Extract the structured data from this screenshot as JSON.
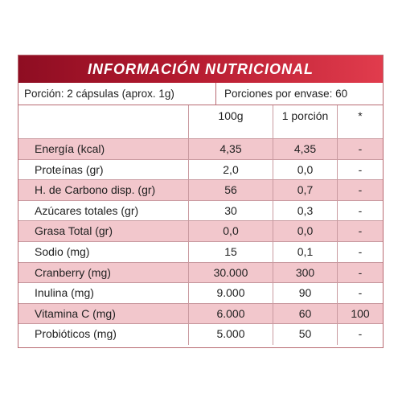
{
  "title": "INFORMACIÓN NUTRICIONAL",
  "portion": "Porción: 2 cápsulas (aprox. 1g)",
  "servings": "Porciones por envase: 60",
  "headers": [
    "",
    "100g",
    "1 porción",
    "*"
  ],
  "rows": [
    [
      "Energía (kcal)",
      "4,35",
      "4,35",
      "-"
    ],
    [
      "Proteínas (gr)",
      "2,0",
      "0,0",
      "-"
    ],
    [
      "H. de Carbono disp. (gr)",
      "56",
      "0,7",
      "-"
    ],
    [
      "Azúcares totales (gr)",
      "30",
      "0,3",
      "-"
    ],
    [
      "Grasa Total (gr)",
      "0,0",
      "0,0",
      "-"
    ],
    [
      "Sodio (mg)",
      "15",
      "0,1",
      "-"
    ],
    [
      "Cranberry (mg)",
      "30.000",
      "300",
      "-"
    ],
    [
      "Inulina (mg)",
      "9.000",
      "90",
      "-"
    ],
    [
      "Vitamina C (mg)",
      "6.000",
      "60",
      "100"
    ],
    [
      "Probióticos (mg)",
      "5.000",
      "50",
      "-"
    ]
  ],
  "colors": {
    "title_bg_start": "#8e0d22",
    "title_bg_end": "#e13c4d",
    "row_shade": "#f2c7cc"
  }
}
